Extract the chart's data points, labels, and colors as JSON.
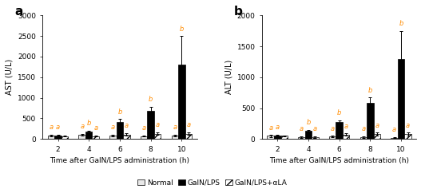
{
  "panel_a": {
    "title": "a",
    "ylabel": "AST (U/L)",
    "xlabel": "Time after GalN/LPS administration (h)",
    "ylim": [
      0,
      3000
    ],
    "yticks": [
      0,
      500,
      1000,
      1500,
      2000,
      2500,
      3000
    ],
    "time_points": [
      2,
      4,
      6,
      8,
      10
    ],
    "normal": [
      80,
      100,
      80,
      70,
      80
    ],
    "galn": [
      90,
      170,
      420,
      690,
      1800
    ],
    "galn_ala": [
      70,
      70,
      110,
      130,
      130
    ],
    "normal_err": [
      20,
      20,
      20,
      15,
      20
    ],
    "galn_err": [
      15,
      30,
      60,
      90,
      700
    ],
    "galn_ala_err": [
      15,
      15,
      30,
      30,
      30
    ],
    "annotations": {
      "normal_labels": [
        "a",
        "a",
        "a",
        "a",
        "a"
      ],
      "galn_labels": [
        "a",
        "b",
        "b",
        "b",
        "b"
      ],
      "galn_ala_labels": [
        "",
        "a",
        "a",
        "a",
        "a"
      ]
    }
  },
  "panel_b": {
    "title": "b",
    "ylabel": "ALT (U/L)",
    "xlabel": "Time after GalN/LPS administration (h)",
    "ylim": [
      0,
      2000
    ],
    "yticks": [
      0,
      500,
      1000,
      1500,
      2000
    ],
    "time_points": [
      2,
      4,
      6,
      8,
      10
    ],
    "normal": [
      50,
      30,
      40,
      30,
      20
    ],
    "galn": [
      60,
      130,
      270,
      590,
      1300
    ],
    "galn_ala": [
      50,
      30,
      70,
      80,
      80
    ],
    "normal_err": [
      15,
      10,
      10,
      10,
      10
    ],
    "galn_err": [
      10,
      20,
      30,
      80,
      450
    ],
    "galn_ala_err": [
      10,
      10,
      20,
      20,
      20
    ],
    "annotations": {
      "normal_labels": [
        "a",
        "a",
        "a",
        "a",
        "a"
      ],
      "galn_labels": [
        "a",
        "b",
        "b",
        "b",
        "b"
      ],
      "galn_ala_labels": [
        "",
        "a",
        "a",
        "a",
        "a"
      ]
    }
  },
  "colors": {
    "normal": "#e8e8e8",
    "galn": "#000000",
    "galn_ala": "#ffffff"
  },
  "hatch": {
    "normal": "",
    "galn": "",
    "galn_ala": "////"
  },
  "legend_labels": [
    "Normal",
    "GalN/LPS",
    "GalN/LPS+αLA"
  ],
  "bar_width": 0.22,
  "annotation_color": "#ff8c00",
  "annotation_fontsize": 6
}
